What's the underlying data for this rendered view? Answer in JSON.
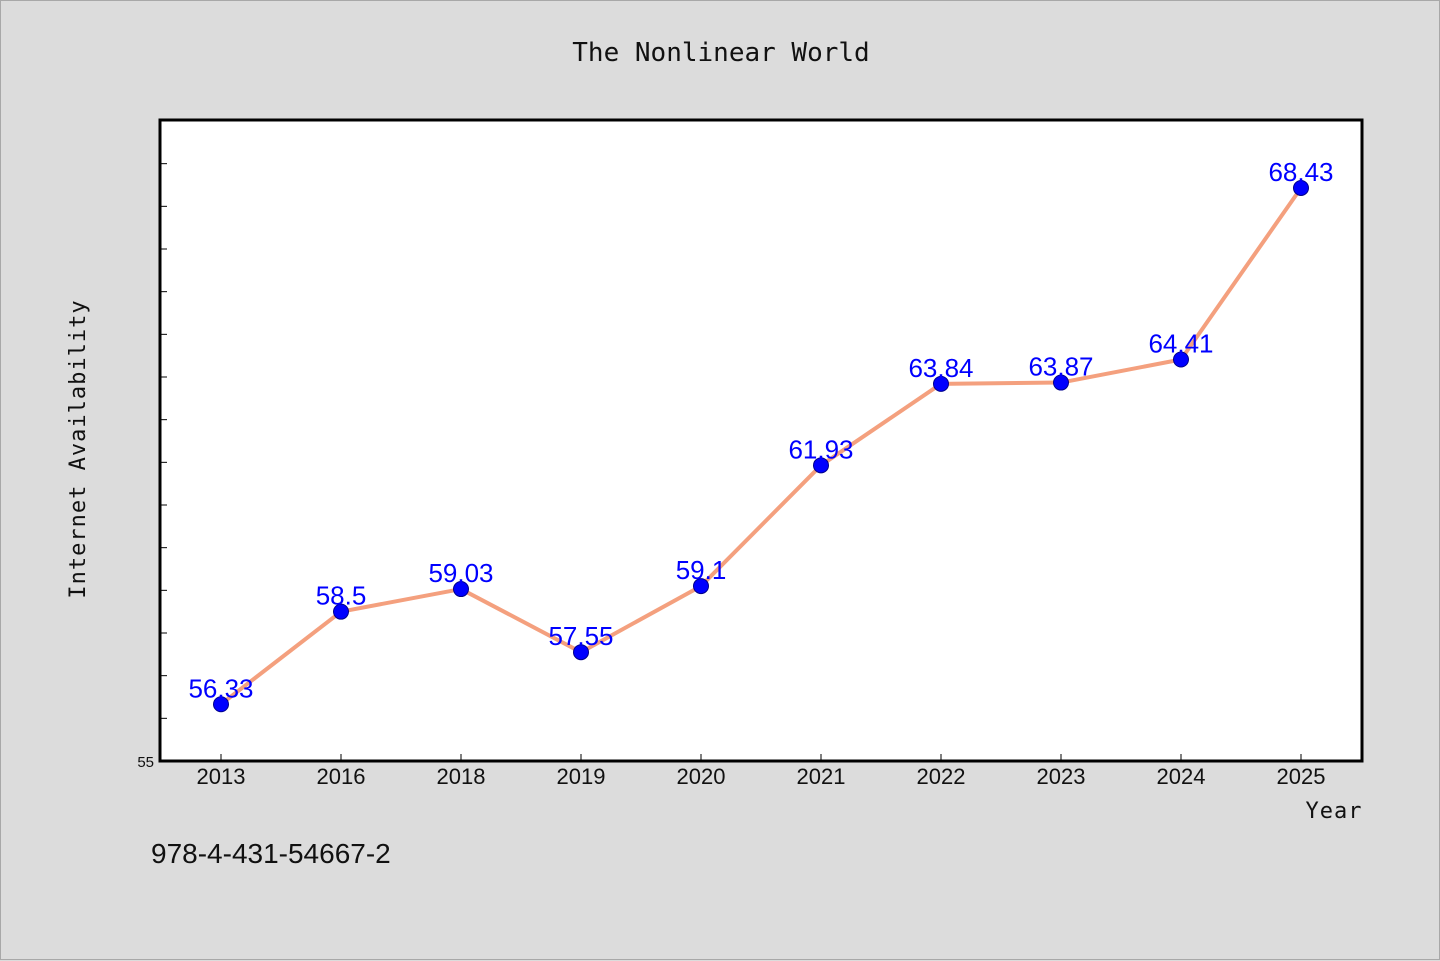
{
  "chart_data": {
    "type": "line",
    "title": "The Nonlinear World",
    "xlabel": "Year",
    "ylabel": "Internet Availability",
    "categories": [
      "2013",
      "2016",
      "2018",
      "2019",
      "2020",
      "2021",
      "2022",
      "2023",
      "2024",
      "2025"
    ],
    "series": [
      {
        "values": [
          56.33,
          58.5,
          59.03,
          57.55,
          59.1,
          61.93,
          63.84,
          63.87,
          64.41,
          68.43
        ],
        "labels": [
          "56.33",
          "58.5",
          "59.03",
          "57.55",
          "59.1",
          "61.93",
          "63.84",
          "63.87",
          "64.41",
          "68.43"
        ]
      }
    ],
    "ylim": [
      55,
      70
    ],
    "y_minor_step": 1,
    "y_tick_labels": [
      {
        "value": 55,
        "label": "55"
      }
    ],
    "grid": false,
    "colors": {
      "line": "#f4a07e",
      "marker": "#0000ff",
      "data_label": "#0000ff",
      "plot_bg": "#ffffff",
      "page_bg": "#dcdcdc"
    }
  },
  "footer": {
    "isbn": "978-4-431-54667-2"
  }
}
